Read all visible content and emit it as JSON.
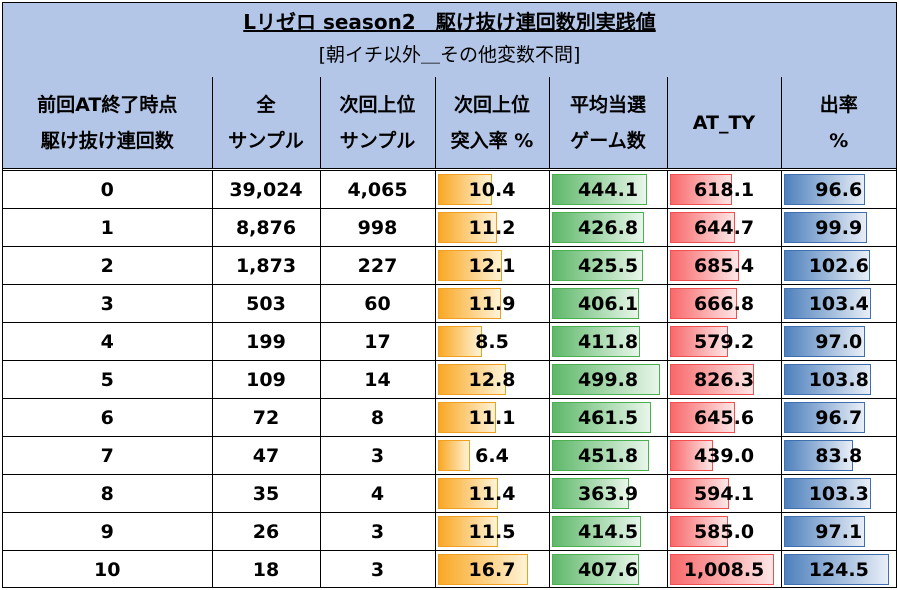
{
  "title": "Lリゼロ season2　駆け抜け連回数別実践値",
  "subtitle": "[朝イチ以外＿その他変数不問]",
  "headers": [
    {
      "l1": "前回AT終了時点",
      "l2": "駆け抜け連回数"
    },
    {
      "l1": "全",
      "l2": "サンプル"
    },
    {
      "l1": "次回上位",
      "l2": "サンプル"
    },
    {
      "l1": "次回上位",
      "l2": "突入率 %"
    },
    {
      "l1": "平均当選",
      "l2": "ゲーム数"
    },
    {
      "l1": "AT_TY",
      "l2": ""
    },
    {
      "l1": "出率",
      "l2": "%"
    }
  ],
  "rows": [
    {
      "count": "0",
      "total": "39,024",
      "upper": "4,065",
      "rate": "10.4",
      "avg_games": "444.1",
      "at_ty": "618.1",
      "payout": "96.6"
    },
    {
      "count": "1",
      "total": "8,876",
      "upper": "998",
      "rate": "11.2",
      "avg_games": "426.8",
      "at_ty": "644.7",
      "payout": "99.9"
    },
    {
      "count": "2",
      "total": "1,873",
      "upper": "227",
      "rate": "12.1",
      "avg_games": "425.5",
      "at_ty": "685.4",
      "payout": "102.6"
    },
    {
      "count": "3",
      "total": "503",
      "upper": "60",
      "rate": "11.9",
      "avg_games": "406.1",
      "at_ty": "666.8",
      "payout": "103.4"
    },
    {
      "count": "4",
      "total": "199",
      "upper": "17",
      "rate": "8.5",
      "avg_games": "411.8",
      "at_ty": "579.2",
      "payout": "97.0"
    },
    {
      "count": "5",
      "total": "109",
      "upper": "14",
      "rate": "12.8",
      "avg_games": "499.8",
      "at_ty": "826.3",
      "payout": "103.8"
    },
    {
      "count": "6",
      "total": "72",
      "upper": "8",
      "rate": "11.1",
      "avg_games": "461.5",
      "at_ty": "645.6",
      "payout": "96.7"
    },
    {
      "count": "7",
      "total": "47",
      "upper": "3",
      "rate": "6.4",
      "avg_games": "451.8",
      "at_ty": "439.0",
      "payout": "83.8"
    },
    {
      "count": "8",
      "total": "35",
      "upper": "4",
      "rate": "11.4",
      "avg_games": "363.9",
      "at_ty": "594.1",
      "payout": "103.3"
    },
    {
      "count": "9",
      "total": "26",
      "upper": "3",
      "rate": "11.5",
      "avg_games": "414.5",
      "at_ty": "585.0",
      "payout": "97.1"
    },
    {
      "count": "10",
      "total": "18",
      "upper": "3",
      "rate": "16.7",
      "avg_games": "407.6",
      "at_ty": "1,008.5",
      "payout": "124.5"
    }
  ],
  "data_bar_colors": {
    "rate": "#f9a825",
    "avg_games": "#5fb86a",
    "at_ty": "#f8696b",
    "payout": "#4f81bd"
  }
}
